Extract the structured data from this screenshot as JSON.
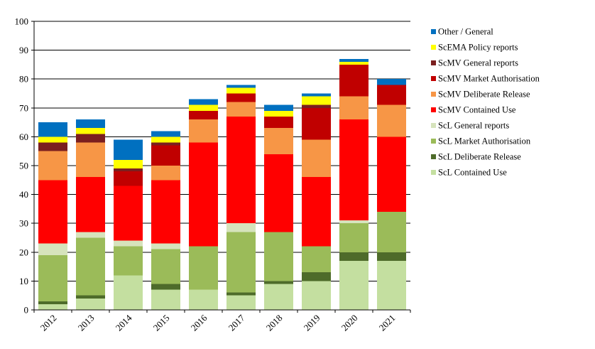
{
  "chart_data": {
    "type": "bar",
    "stacked": true,
    "categories": [
      "2012",
      "2013",
      "2014",
      "2015",
      "2016",
      "2017",
      "2018",
      "2019",
      "2020",
      "2021"
    ],
    "ylim": [
      0,
      100
    ],
    "yticks": [
      0,
      10,
      20,
      30,
      40,
      50,
      60,
      70,
      80,
      90,
      100
    ],
    "grid": true,
    "legend_position": "right",
    "series": [
      {
        "name": "ScL Contained Use",
        "color": "#c4dfa0",
        "values": [
          2,
          4,
          12,
          7,
          7,
          5,
          9,
          10,
          17,
          17
        ]
      },
      {
        "name": "ScL Deliberate Release",
        "color": "#4e6b2a",
        "values": [
          1,
          1,
          0,
          2,
          0,
          1,
          1,
          3,
          3,
          3
        ]
      },
      {
        "name": "ScL Market Authorisation",
        "color": "#9bbb59",
        "values": [
          16,
          20,
          10,
          12,
          15,
          21,
          17,
          9,
          10,
          14
        ]
      },
      {
        "name": "ScL General reports",
        "color": "#d6e3bc",
        "values": [
          4,
          2,
          2,
          2,
          0,
          3,
          0,
          0,
          1,
          0
        ]
      },
      {
        "name": "ScMV Contained Use",
        "color": "#ff0000",
        "values": [
          22,
          19,
          19,
          22,
          36,
          37,
          27,
          24,
          35,
          26
        ]
      },
      {
        "name": "ScMV Deliberate Release",
        "color": "#f79646",
        "values": [
          10,
          12,
          0,
          5,
          8,
          5,
          9,
          13,
          8,
          11
        ]
      },
      {
        "name": "ScMV Market Authorisation",
        "color": "#c00000",
        "values": [
          0,
          0,
          5,
          7,
          3,
          3,
          4,
          11,
          11,
          7
        ]
      },
      {
        "name": "ScMV General reports",
        "color": "#7b1f1f",
        "values": [
          3,
          3,
          1,
          1,
          0,
          0,
          0,
          1,
          0,
          0
        ]
      },
      {
        "name": "ScEMA Policy reports",
        "color": "#ffff00",
        "values": [
          2,
          2,
          3,
          2,
          2,
          2,
          2,
          3,
          1,
          0
        ]
      },
      {
        "name": "Other / General",
        "color": "#0070c0",
        "values": [
          5,
          3,
          7,
          2,
          2,
          1,
          2,
          1,
          1,
          2
        ]
      }
    ]
  }
}
